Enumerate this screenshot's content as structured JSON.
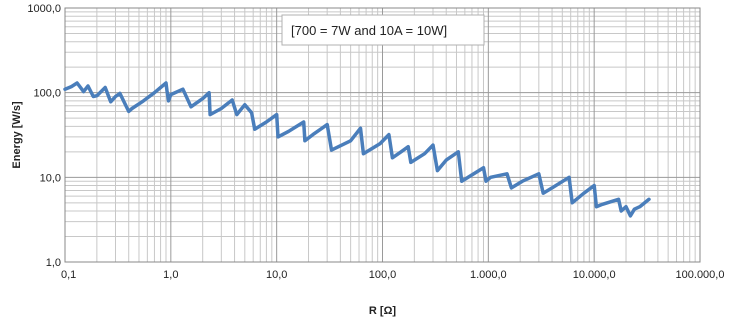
{
  "chart_data": {
    "type": "line",
    "xscale": "log",
    "yscale": "log",
    "xlim": [
      0.1,
      100000
    ],
    "ylim": [
      1,
      1000
    ],
    "xlabel": "R [Ω]",
    "ylabel": "Energy [W/s]",
    "xticks": [
      "0,1",
      "1,0",
      "10,0",
      "100,0",
      "1.000,0",
      "10.000,0",
      "100.000,0"
    ],
    "yticks": [
      "1,0",
      "10,0",
      "100,0",
      "1000,0"
    ],
    "annotation": "[700 = 7W and  10A = 10W]",
    "grid": true,
    "legend": "none",
    "line_color": "#4a7ebb",
    "series": [
      {
        "x": [
          0.1,
          0.115,
          0.13,
          0.15,
          0.165,
          0.185,
          0.2,
          0.24,
          0.27,
          0.3,
          0.33,
          0.4,
          0.43,
          0.55,
          0.7,
          0.8,
          0.9,
          0.92,
          0.95,
          1.0,
          1.3,
          1.55,
          2.0,
          2.3,
          2.35,
          3.0,
          3.8,
          4.2,
          5.0,
          5.8,
          6.2,
          8.0,
          10.0,
          10.3,
          13.0,
          18.0,
          18.5,
          22.0,
          30.0,
          33.0,
          50.0,
          62.0,
          66.0,
          95.0,
          115.0,
          124.0,
          150.0,
          175.0,
          185.0,
          250.0,
          300.0,
          330.0,
          400.0,
          520.0,
          560.0,
          900.0,
          950.0,
          1050.0,
          1500.0,
          1650.0,
          2100.0,
          3000.0,
          3300.0,
          4000.0,
          5800.0,
          6200.0,
          8000.0,
          10000.0,
          10500.0,
          12000.0,
          17000.0,
          18000.0,
          20000.0,
          22000.0,
          24000.0,
          27000.0,
          33000.0
        ],
        "y": [
          110,
          118,
          130,
          103,
          120,
          90,
          92,
          115,
          78,
          90,
          98,
          60,
          65,
          80,
          100,
          115,
          130,
          105,
          80,
          95,
          110,
          68,
          85,
          100,
          55,
          65,
          82,
          55,
          72,
          58,
          37,
          45,
          55,
          30,
          35,
          45,
          27,
          32,
          42,
          21,
          27,
          38,
          19,
          25,
          32,
          17,
          20,
          23,
          15,
          19,
          24,
          12,
          16,
          20,
          9,
          13,
          9,
          10,
          11,
          7.5,
          9,
          11,
          6.5,
          7.5,
          10,
          5,
          6.5,
          8,
          4.5,
          4.8,
          5.5,
          4,
          4.5,
          3.5,
          4.2,
          4.5,
          5.5
        ]
      }
    ]
  }
}
